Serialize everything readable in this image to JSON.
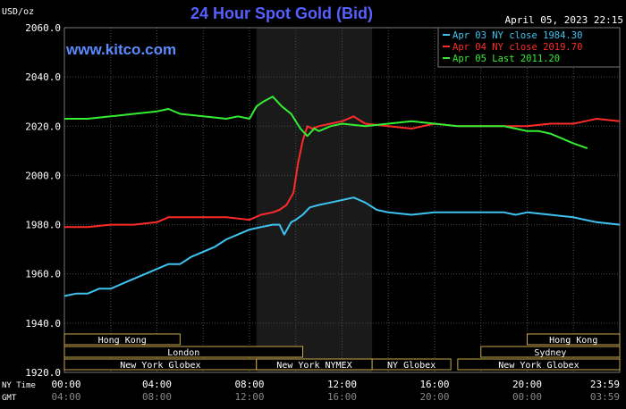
{
  "chart_data": {
    "type": "line",
    "title": "24 Hour Spot Gold (Bid)",
    "watermark": "www.kitco.com",
    "timestamp": "April 05, 2023 22:15",
    "ylabel": "USD/oz",
    "ylim": [
      1920,
      2060
    ],
    "yticks": [
      "1920.0",
      "1940.0",
      "1960.0",
      "1980.0",
      "2000.0",
      "2020.0",
      "2040.0",
      "2060.0"
    ],
    "x_ticks_ny": [
      "00:00",
      "04:00",
      "08:00",
      "12:00",
      "16:00",
      "20:00",
      "23:59"
    ],
    "x_ticks_gmt": [
      "04:00",
      "08:00",
      "12:00",
      "16:00",
      "20:00",
      "00:00",
      "03:59"
    ],
    "x_row_labels": [
      "NY Time",
      "GMT"
    ],
    "grid": true,
    "legend_position": "top-right",
    "colors": {
      "background": "#000000",
      "plot_bg": "#000000",
      "grid": "#4a4a4a",
      "title": "#5560ff",
      "watermark": "#5a8cff",
      "text": "#ffffff",
      "shade": "#1a1a1a",
      "session_fill": "#000000",
      "session_border": "#c8a84a",
      "session_text": "#ffffff"
    },
    "markets": [
      {
        "name": "Hong Kong",
        "start": 0,
        "end": 5
      },
      {
        "name": "Hong Kong",
        "start": 20,
        "end": 24
      },
      {
        "name": "London",
        "start": 0,
        "end": 10.3
      },
      {
        "name": "Sydney",
        "start": 18,
        "end": 24
      },
      {
        "name": "New York Globex",
        "start": 0,
        "end": 8.3
      },
      {
        "name": "New York NYMEX",
        "start": 8.3,
        "end": 13.3
      },
      {
        "name": "NY Globex",
        "start": 13.3,
        "end": 16.7
      },
      {
        "name": "New York Globex",
        "start": 17,
        "end": 24
      }
    ],
    "shaded_region": [
      8.3,
      13.3
    ],
    "series": [
      {
        "name": "Apr 03 NY close 1984.30",
        "color": "#3ec3f0",
        "x": [
          0,
          0.5,
          1,
          1.5,
          2,
          2.5,
          3,
          3.5,
          4,
          4.5,
          5,
          5.5,
          6,
          6.5,
          7,
          7.5,
          8,
          8.5,
          9,
          9.3,
          9.5,
          9.8,
          10,
          10.3,
          10.6,
          11,
          11.5,
          12,
          12.5,
          13,
          13.5,
          14,
          15,
          16,
          17,
          18,
          19,
          19.5,
          20,
          21,
          22,
          22.5,
          23,
          24
        ],
        "y": [
          1951,
          1952,
          1952,
          1954,
          1954,
          1956,
          1958,
          1960,
          1962,
          1964,
          1964,
          1967,
          1969,
          1971,
          1974,
          1976,
          1978,
          1979,
          1980,
          1980,
          1976,
          1981,
          1982,
          1984,
          1987,
          1988,
          1989,
          1990,
          1991,
          1989,
          1986,
          1985,
          1984,
          1985,
          1985,
          1985,
          1985,
          1984,
          1985,
          1984,
          1983,
          1982,
          1981,
          1980
        ]
      },
      {
        "name": "Apr 04 NY close 2019.70",
        "color": "#ff2a2a",
        "x": [
          0,
          1,
          2,
          3,
          4,
          4.5,
          5,
          6,
          7,
          8,
          8.5,
          9,
          9.3,
          9.6,
          9.9,
          10.1,
          10.3,
          10.5,
          10.7,
          11,
          11.5,
          12,
          12.5,
          13,
          14,
          15,
          16,
          17,
          18,
          19,
          20,
          21,
          22,
          22.5,
          23,
          24
        ],
        "y": [
          1979,
          1979,
          1980,
          1980,
          1981,
          1983,
          1983,
          1983,
          1983,
          1982,
          1984,
          1985,
          1986,
          1988,
          1993,
          2005,
          2014,
          2020,
          2019,
          2020,
          2021,
          2022,
          2024,
          2021,
          2020,
          2019,
          2021,
          2020,
          2020,
          2020,
          2020,
          2021,
          2021,
          2022,
          2023,
          2022
        ]
      },
      {
        "name": "Apr 05 Last 2011.20",
        "color": "#33ee33",
        "x": [
          0,
          1,
          2,
          3,
          4,
          4.5,
          5,
          6,
          7,
          7.5,
          8,
          8.3,
          8.6,
          9,
          9.4,
          9.8,
          10.2,
          10.5,
          10.8,
          11,
          11.5,
          12,
          13,
          14,
          15,
          16,
          17,
          18,
          19,
          19.5,
          20,
          20.5,
          21,
          21.5,
          22,
          22.3,
          22.6
        ],
        "y": [
          2023,
          2023,
          2024,
          2025,
          2026,
          2027,
          2025,
          2024,
          2023,
          2024,
          2023,
          2028,
          2030,
          2032,
          2028,
          2025,
          2019,
          2016,
          2019,
          2018,
          2020,
          2021,
          2020,
          2021,
          2022,
          2021,
          2020,
          2020,
          2020,
          2019,
          2018,
          2018,
          2017,
          2015,
          2013,
          2012,
          2011
        ]
      }
    ]
  }
}
